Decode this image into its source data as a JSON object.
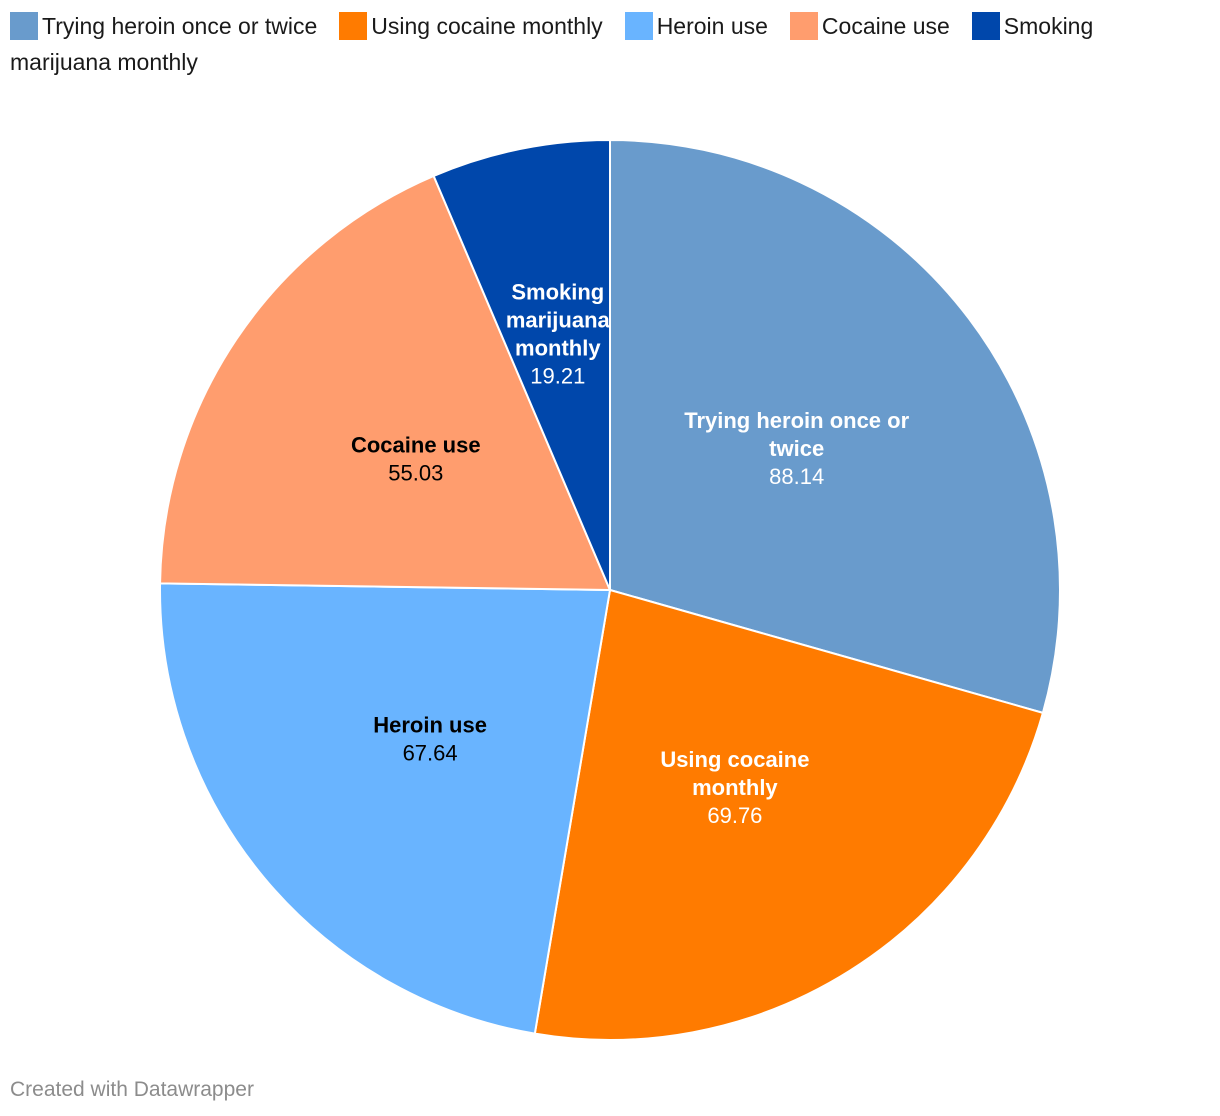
{
  "chart_data": {
    "type": "pie",
    "categories": [
      "Trying heroin once or twice",
      "Using cocaine monthly",
      "Heroin use",
      "Cocaine use",
      "Smoking marijuana monthly"
    ],
    "values": [
      88.14,
      69.76,
      67.64,
      55.03,
      19.21
    ],
    "value_labels": [
      "88.14",
      "69.76",
      "67.64",
      "55.03",
      "19.21"
    ],
    "colors": [
      "#699bcc",
      "#ff7b00",
      "#69b4ff",
      "#ff9d6e",
      "#0047ab"
    ],
    "label_colors": [
      "#ffffff",
      "#ffffff",
      "#000000",
      "#000000",
      "#ffffff"
    ],
    "label_lines": [
      [
        "Trying heroin once or",
        "twice"
      ],
      [
        "Using cocaine",
        "monthly"
      ],
      [
        "Heroin use"
      ],
      [
        "Cocaine use"
      ],
      [
        "Smoking",
        "marijuana",
        "monthly"
      ]
    ],
    "legend_placement": "top"
  },
  "footer": {
    "credit": "Created with Datawrapper"
  }
}
